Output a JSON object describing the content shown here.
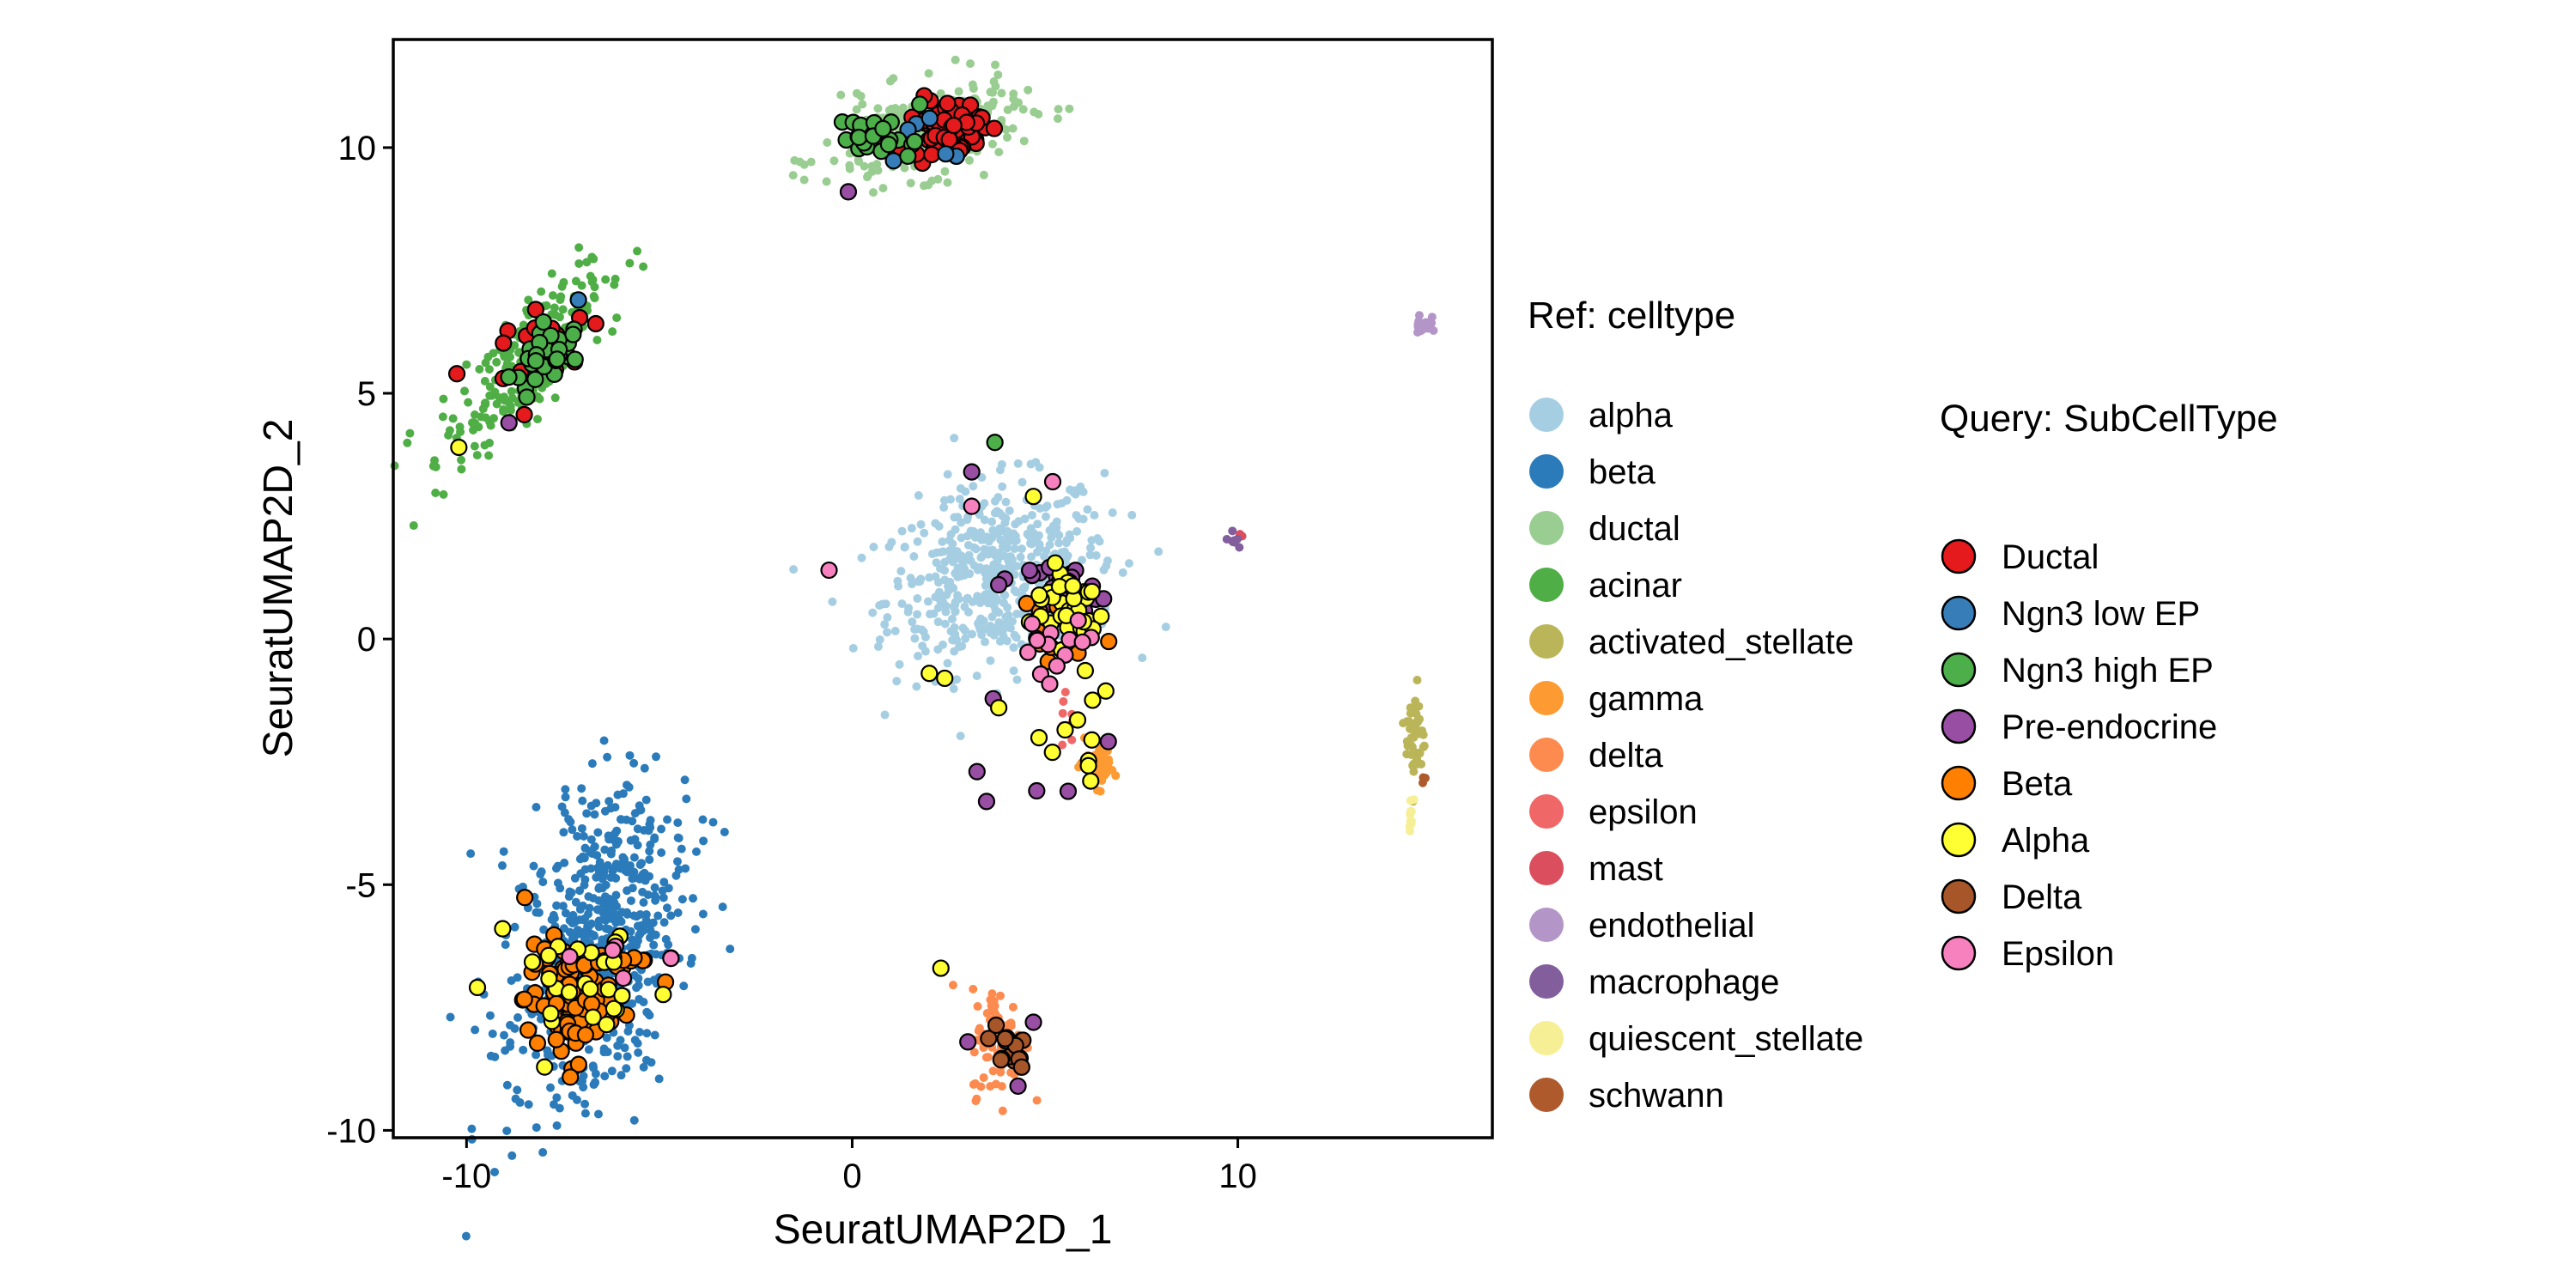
{
  "chart_data": {
    "type": "scatter",
    "title": "",
    "xlabel": "SeuratUMAP2D_1",
    "ylabel": "SeuratUMAP2D_2",
    "xlim": [
      -11.9,
      16.6
    ],
    "ylim": [
      -10.15,
      12.2
    ],
    "xticks": [
      -10,
      0,
      10
    ],
    "yticks": [
      -10,
      -5,
      0,
      5,
      10
    ],
    "grid": false,
    "legend_position": "right",
    "ref_legend": {
      "title": "Ref: celltype",
      "items": [
        {
          "label": "alpha",
          "color": "#A6CEE3"
        },
        {
          "label": "beta",
          "color": "#2B7BBA"
        },
        {
          "label": "ductal",
          "color": "#99CD91"
        },
        {
          "label": "acinar",
          "color": "#4FAE45"
        },
        {
          "label": "activated_stellate",
          "color": "#BBB55A"
        },
        {
          "label": "gamma",
          "color": "#FD9A32"
        },
        {
          "label": "delta",
          "color": "#FD8B4F"
        },
        {
          "label": "epsilon",
          "color": "#F06767"
        },
        {
          "label": "mast",
          "color": "#DB4E5D"
        },
        {
          "label": "endothelial",
          "color": "#B396C7"
        },
        {
          "label": "macrophage",
          "color": "#835E9D"
        },
        {
          "label": "quiescent_stellate",
          "color": "#F7EF95"
        },
        {
          "label": "schwann",
          "color": "#AE5A2D"
        }
      ]
    },
    "query_legend": {
      "title": "Query: SubCellType",
      "items": [
        {
          "label": "Ductal",
          "color": "#E41A1C"
        },
        {
          "label": "Ngn3 low EP",
          "color": "#377EB8"
        },
        {
          "label": "Ngn3 high EP",
          "color": "#4DAF4A"
        },
        {
          "label": "Pre-endocrine",
          "color": "#984EA3"
        },
        {
          "label": "Beta",
          "color": "#FF7F00"
        },
        {
          "label": "Alpha",
          "color": "#FFFF33"
        },
        {
          "label": "Delta",
          "color": "#A65628"
        },
        {
          "label": "Epsilon",
          "color": "#F781BF"
        }
      ]
    },
    "ref_clusters": [
      {
        "celltype": "alpha",
        "cx": 3.8,
        "cy": 1.3,
        "sx": 1.5,
        "sy": 0.9,
        "rot": 10,
        "n": 520
      },
      {
        "celltype": "beta",
        "cx": -6.6,
        "cy": -6.2,
        "sx": 1.0,
        "sy": 1.7,
        "rot": -25,
        "n": 620
      },
      {
        "celltype": "ductal",
        "cx": 1.8,
        "cy": 10.3,
        "sx": 1.3,
        "sy": 0.45,
        "rot": 10,
        "n": 260
      },
      {
        "celltype": "acinar",
        "cx": -8.5,
        "cy": 5.6,
        "sx": 1.3,
        "sy": 0.45,
        "rot": 40,
        "n": 260
      },
      {
        "celltype": "activated_stellate",
        "cx": 14.6,
        "cy": -2.0,
        "sx": 0.12,
        "sy": 0.55,
        "rot": 0,
        "n": 45
      },
      {
        "celltype": "gamma",
        "cx": 6.4,
        "cy": -2.5,
        "sx": 0.3,
        "sy": 0.25,
        "rot": -40,
        "n": 45
      },
      {
        "celltype": "delta",
        "cx": 3.8,
        "cy": -8.2,
        "sx": 0.35,
        "sy": 0.55,
        "rot": 0,
        "n": 90
      },
      {
        "celltype": "epsilon",
        "cx": 5.6,
        "cy": -1.4,
        "sx": 0.15,
        "sy": 0.35,
        "rot": 0,
        "n": 8
      },
      {
        "celltype": "mast",
        "cx": 10.1,
        "cy": 2.1,
        "sx": 0.05,
        "sy": 0.05,
        "rot": 0,
        "n": 2
      },
      {
        "celltype": "endothelial",
        "cx": 14.8,
        "cy": 6.4,
        "sx": 0.1,
        "sy": 0.15,
        "rot": 0,
        "n": 22
      },
      {
        "celltype": "macrophage",
        "cx": 9.9,
        "cy": 2.0,
        "sx": 0.08,
        "sy": 0.08,
        "rot": 0,
        "n": 8
      },
      {
        "celltype": "quiescent_stellate",
        "cx": 14.5,
        "cy": -3.5,
        "sx": 0.06,
        "sy": 0.15,
        "rot": 0,
        "n": 10
      },
      {
        "celltype": "schwann",
        "cx": 14.8,
        "cy": -2.8,
        "sx": 0.04,
        "sy": 0.1,
        "rot": 0,
        "n": 3
      }
    ],
    "query_clusters": [
      {
        "subtype": "Ductal",
        "cx": 2.5,
        "cy": 10.4,
        "sx": 0.45,
        "sy": 0.3,
        "rot": 0,
        "n": 85
      },
      {
        "subtype": "Ductal",
        "cx": -8.3,
        "cy": 5.9,
        "sx": 0.8,
        "sy": 0.35,
        "rot": 30,
        "n": 16
      },
      {
        "subtype": "Ngn3 low EP",
        "cx": 1.8,
        "cy": 10.1,
        "sx": 0.8,
        "sy": 0.3,
        "rot": 0,
        "n": 6
      },
      {
        "subtype": "Ngn3 high EP",
        "cx": 0.8,
        "cy": 10.2,
        "sx": 0.6,
        "sy": 0.25,
        "rot": 0,
        "n": 24
      },
      {
        "subtype": "Ngn3 high EP",
        "cx": -7.9,
        "cy": 5.8,
        "sx": 0.45,
        "sy": 0.3,
        "rot": 30,
        "n": 30
      },
      {
        "subtype": "Pre-endocrine",
        "cx": 5.4,
        "cy": 1.0,
        "sx": 0.45,
        "sy": 0.3,
        "rot": 0,
        "n": 32
      },
      {
        "subtype": "Pre-endocrine",
        "cx": 4.5,
        "cy": -1.5,
        "sx": 1.2,
        "sy": 1.6,
        "rot": 0,
        "n": 8
      },
      {
        "subtype": "Beta",
        "cx": -7.4,
        "cy": -7.4,
        "sx": 0.55,
        "sy": 0.6,
        "rot": 0,
        "n": 80
      },
      {
        "subtype": "Beta",
        "cx": -6.2,
        "cy": -6.6,
        "sx": 0.6,
        "sy": 0.15,
        "rot": 0,
        "n": 20
      },
      {
        "subtype": "Beta",
        "cx": 5.0,
        "cy": 0.3,
        "sx": 0.5,
        "sy": 0.35,
        "rot": 0,
        "n": 14
      },
      {
        "subtype": "Alpha",
        "cx": 5.6,
        "cy": 0.7,
        "sx": 0.5,
        "sy": 0.4,
        "rot": 0,
        "n": 40
      },
      {
        "subtype": "Alpha",
        "cx": -7.0,
        "cy": -7.0,
        "sx": 1.2,
        "sy": 0.8,
        "rot": 0,
        "n": 26
      },
      {
        "subtype": "Alpha",
        "cx": 5.8,
        "cy": -1.8,
        "sx": 0.55,
        "sy": 0.6,
        "rot": 0,
        "n": 12
      },
      {
        "subtype": "Delta",
        "cx": 4.0,
        "cy": -8.3,
        "sx": 0.25,
        "sy": 0.25,
        "rot": 0,
        "n": 16
      },
      {
        "subtype": "Epsilon",
        "cx": 5.0,
        "cy": -0.6,
        "sx": 0.8,
        "sy": 0.5,
        "rot": 0,
        "n": 14
      },
      {
        "subtype": "Epsilon",
        "cx": -6.0,
        "cy": -6.5,
        "sx": 0.8,
        "sy": 0.4,
        "rot": 0,
        "n": 4
      }
    ],
    "query_outliers": [
      {
        "subtype": "Pre-endocrine",
        "x": -0.1,
        "y": 9.1
      },
      {
        "subtype": "Alpha",
        "x": -10.2,
        "y": 3.9
      },
      {
        "subtype": "Pre-endocrine",
        "x": -8.9,
        "y": 4.4
      },
      {
        "subtype": "Ngn3 low EP",
        "x": -7.1,
        "y": 6.9
      },
      {
        "subtype": "Epsilon",
        "x": -0.6,
        "y": 1.4
      },
      {
        "subtype": "Ngn3 high EP",
        "x": 3.7,
        "y": 4.0
      },
      {
        "subtype": "Pre-endocrine",
        "x": 3.1,
        "y": 3.4
      },
      {
        "subtype": "Epsilon",
        "x": 3.1,
        "y": 2.7
      },
      {
        "subtype": "Epsilon",
        "x": 5.2,
        "y": 3.2
      },
      {
        "subtype": "Alpha",
        "x": 4.7,
        "y": 2.9
      },
      {
        "subtype": "Alpha",
        "x": 2.0,
        "y": -0.7
      },
      {
        "subtype": "Alpha",
        "x": 2.4,
        "y": -0.8
      },
      {
        "subtype": "Alpha",
        "x": 3.8,
        "y": -1.4
      },
      {
        "subtype": "Pre-endocrine",
        "x": 5.6,
        "y": -3.1
      },
      {
        "subtype": "Alpha",
        "x": 2.3,
        "y": -6.7
      },
      {
        "subtype": "Epsilon",
        "x": -4.7,
        "y": -6.5
      },
      {
        "subtype": "Pre-endocrine",
        "x": 3.0,
        "y": -8.2
      },
      {
        "subtype": "Pre-endocrine",
        "x": 4.3,
        "y": -9.1
      },
      {
        "subtype": "Pre-endocrine",
        "x": 4.7,
        "y": -7.8
      }
    ]
  }
}
